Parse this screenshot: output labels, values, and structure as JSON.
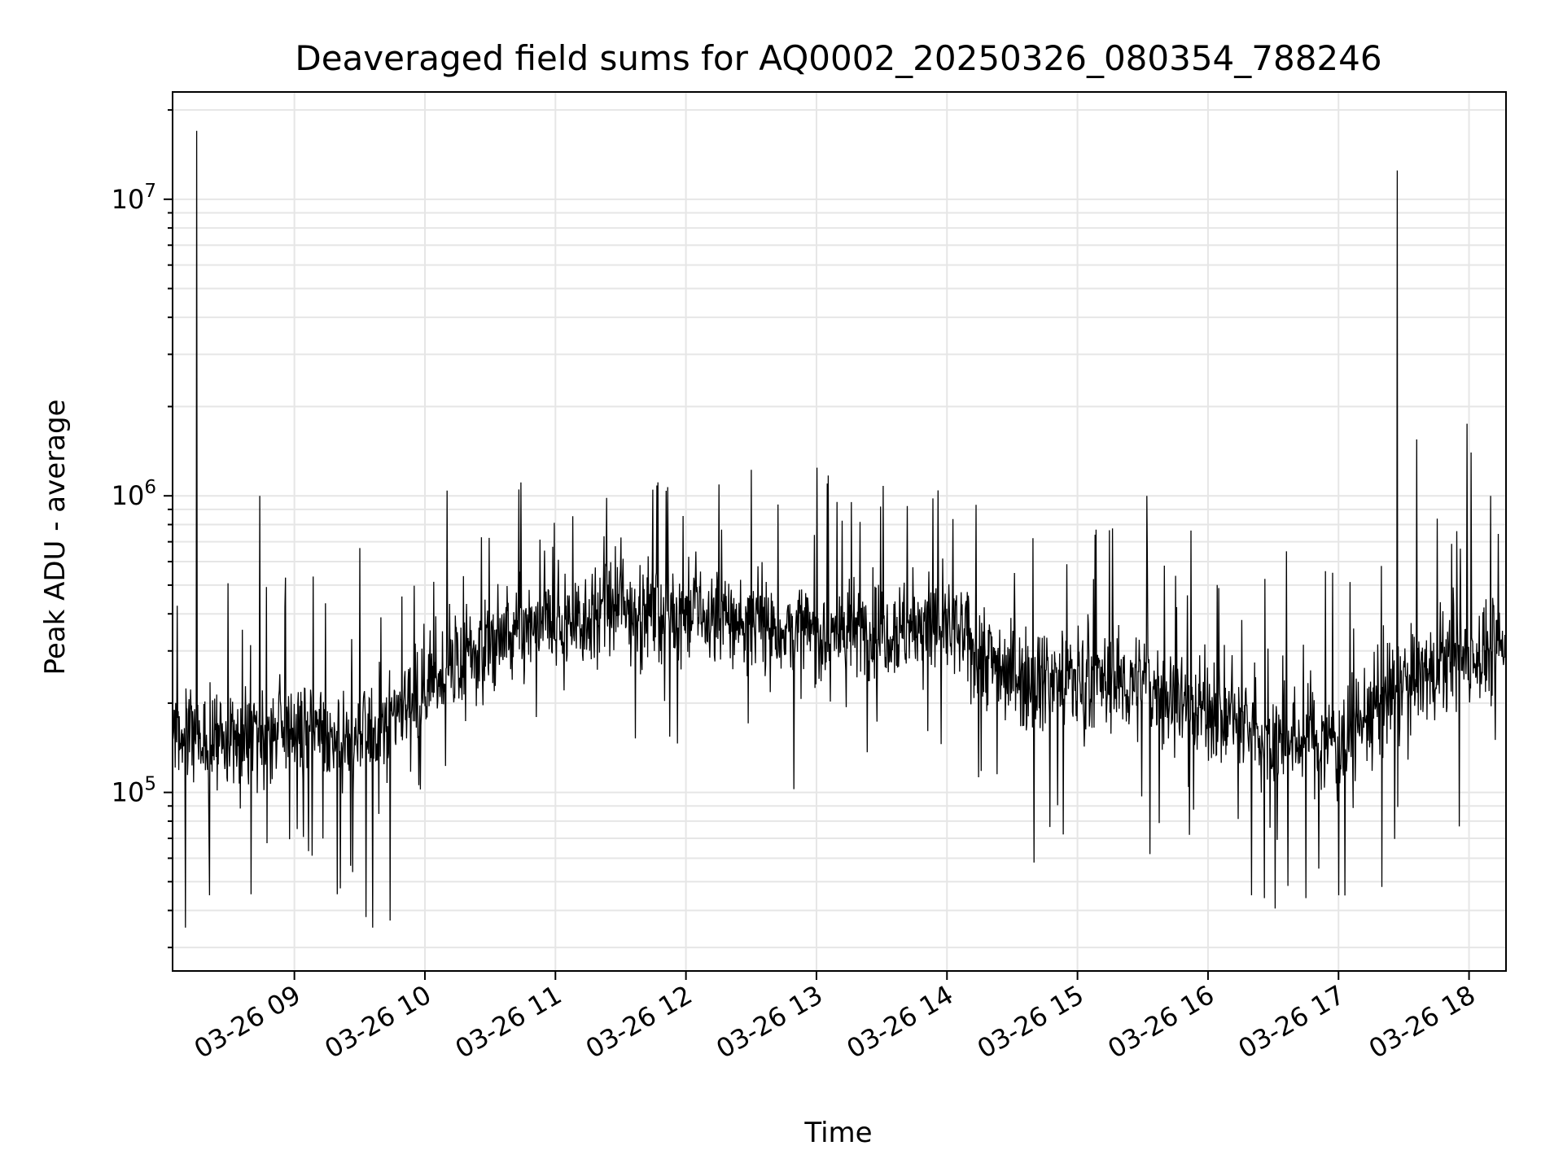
{
  "chart_data": {
    "type": "line",
    "title": "Deaveraged field sums for AQ0002_20250326_080354_788246",
    "xlabel": "Time",
    "ylabel": "Peak ADU - average",
    "x_scale": "time",
    "y_scale": "log",
    "xlim": [
      "03-26 08:04",
      "03-26 18:17"
    ],
    "ylim": [
      25000,
      23000000
    ],
    "grid": true,
    "grid_color": "#e6e6e6",
    "line_color": "#000000",
    "x_ticks": [
      {
        "value": "03-26 09:00",
        "label": "03-26 09"
      },
      {
        "value": "03-26 10:00",
        "label": "03-26 10"
      },
      {
        "value": "03-26 11:00",
        "label": "03-26 11"
      },
      {
        "value": "03-26 12:00",
        "label": "03-26 12"
      },
      {
        "value": "03-26 13:00",
        "label": "03-26 13"
      },
      {
        "value": "03-26 14:00",
        "label": "03-26 14"
      },
      {
        "value": "03-26 15:00",
        "label": "03-26 15"
      },
      {
        "value": "03-26 16:00",
        "label": "03-26 16"
      },
      {
        "value": "03-26 17:00",
        "label": "03-26 17"
      },
      {
        "value": "03-26 18:00",
        "label": "03-26 18"
      }
    ],
    "y_ticks": [
      {
        "value": 100000,
        "base": "10",
        "exp": "5"
      },
      {
        "value": 1000000,
        "base": "10",
        "exp": "6"
      },
      {
        "value": 10000000,
        "base": "10",
        "exp": "7"
      }
    ],
    "baseline_profile": [
      {
        "x": "03-26 08:04",
        "y": 160000
      },
      {
        "x": "03-26 08:30",
        "y": 150000
      },
      {
        "x": "03-26 09:00",
        "y": 160000
      },
      {
        "x": "03-26 09:30",
        "y": 150000
      },
      {
        "x": "03-26 10:00",
        "y": 230000
      },
      {
        "x": "03-26 10:30",
        "y": 320000
      },
      {
        "x": "03-26 11:00",
        "y": 370000
      },
      {
        "x": "03-26 11:30",
        "y": 420000
      },
      {
        "x": "03-26 12:00",
        "y": 400000
      },
      {
        "x": "03-26 12:30",
        "y": 370000
      },
      {
        "x": "03-26 13:00",
        "y": 340000
      },
      {
        "x": "03-26 13:30",
        "y": 360000
      },
      {
        "x": "03-26 14:00",
        "y": 360000
      },
      {
        "x": "03-26 14:30",
        "y": 250000
      },
      {
        "x": "03-26 15:00",
        "y": 240000
      },
      {
        "x": "03-26 15:30",
        "y": 230000
      },
      {
        "x": "03-26 16:00",
        "y": 190000
      },
      {
        "x": "03-26 16:30",
        "y": 150000
      },
      {
        "x": "03-26 17:00",
        "y": 150000
      },
      {
        "x": "03-26 17:30",
        "y": 230000
      },
      {
        "x": "03-26 18:00",
        "y": 290000
      },
      {
        "x": "03-26 18:17",
        "y": 300000
      }
    ],
    "spikes": [
      {
        "x": "03-26 08:15",
        "y": 17000000
      },
      {
        "x": "03-26 08:44",
        "y": 1000000
      },
      {
        "x": "03-26 08:56",
        "y": 530000
      },
      {
        "x": "03-26 11:51",
        "y": 1040000
      },
      {
        "x": "03-26 13:05",
        "y": 1100000
      },
      {
        "x": "03-26 15:32",
        "y": 1000000
      },
      {
        "x": "03-26 16:36",
        "y": 650000
      },
      {
        "x": "03-26 17:27",
        "y": 12500000
      },
      {
        "x": "03-26 17:36",
        "y": 1550000
      },
      {
        "x": "03-26 17:59",
        "y": 1750000
      },
      {
        "x": "03-26 18:01",
        "y": 1400000
      },
      {
        "x": "03-26 18:10",
        "y": 1000000
      }
    ],
    "dips": [
      {
        "x": "03-26 08:10",
        "y": 35000
      },
      {
        "x": "03-26 08:21",
        "y": 45000
      },
      {
        "x": "03-26 09:33",
        "y": 38000
      },
      {
        "x": "03-26 09:36",
        "y": 35000
      },
      {
        "x": "03-26 09:44",
        "y": 37000
      },
      {
        "x": "03-26 14:40",
        "y": 58000
      },
      {
        "x": "03-26 16:20",
        "y": 45000
      },
      {
        "x": "03-26 16:26",
        "y": 44000
      },
      {
        "x": "03-26 16:45",
        "y": 44000
      },
      {
        "x": "03-26 17:00",
        "y": 45000
      },
      {
        "x": "03-26 17:20",
        "y": 48000
      }
    ]
  }
}
